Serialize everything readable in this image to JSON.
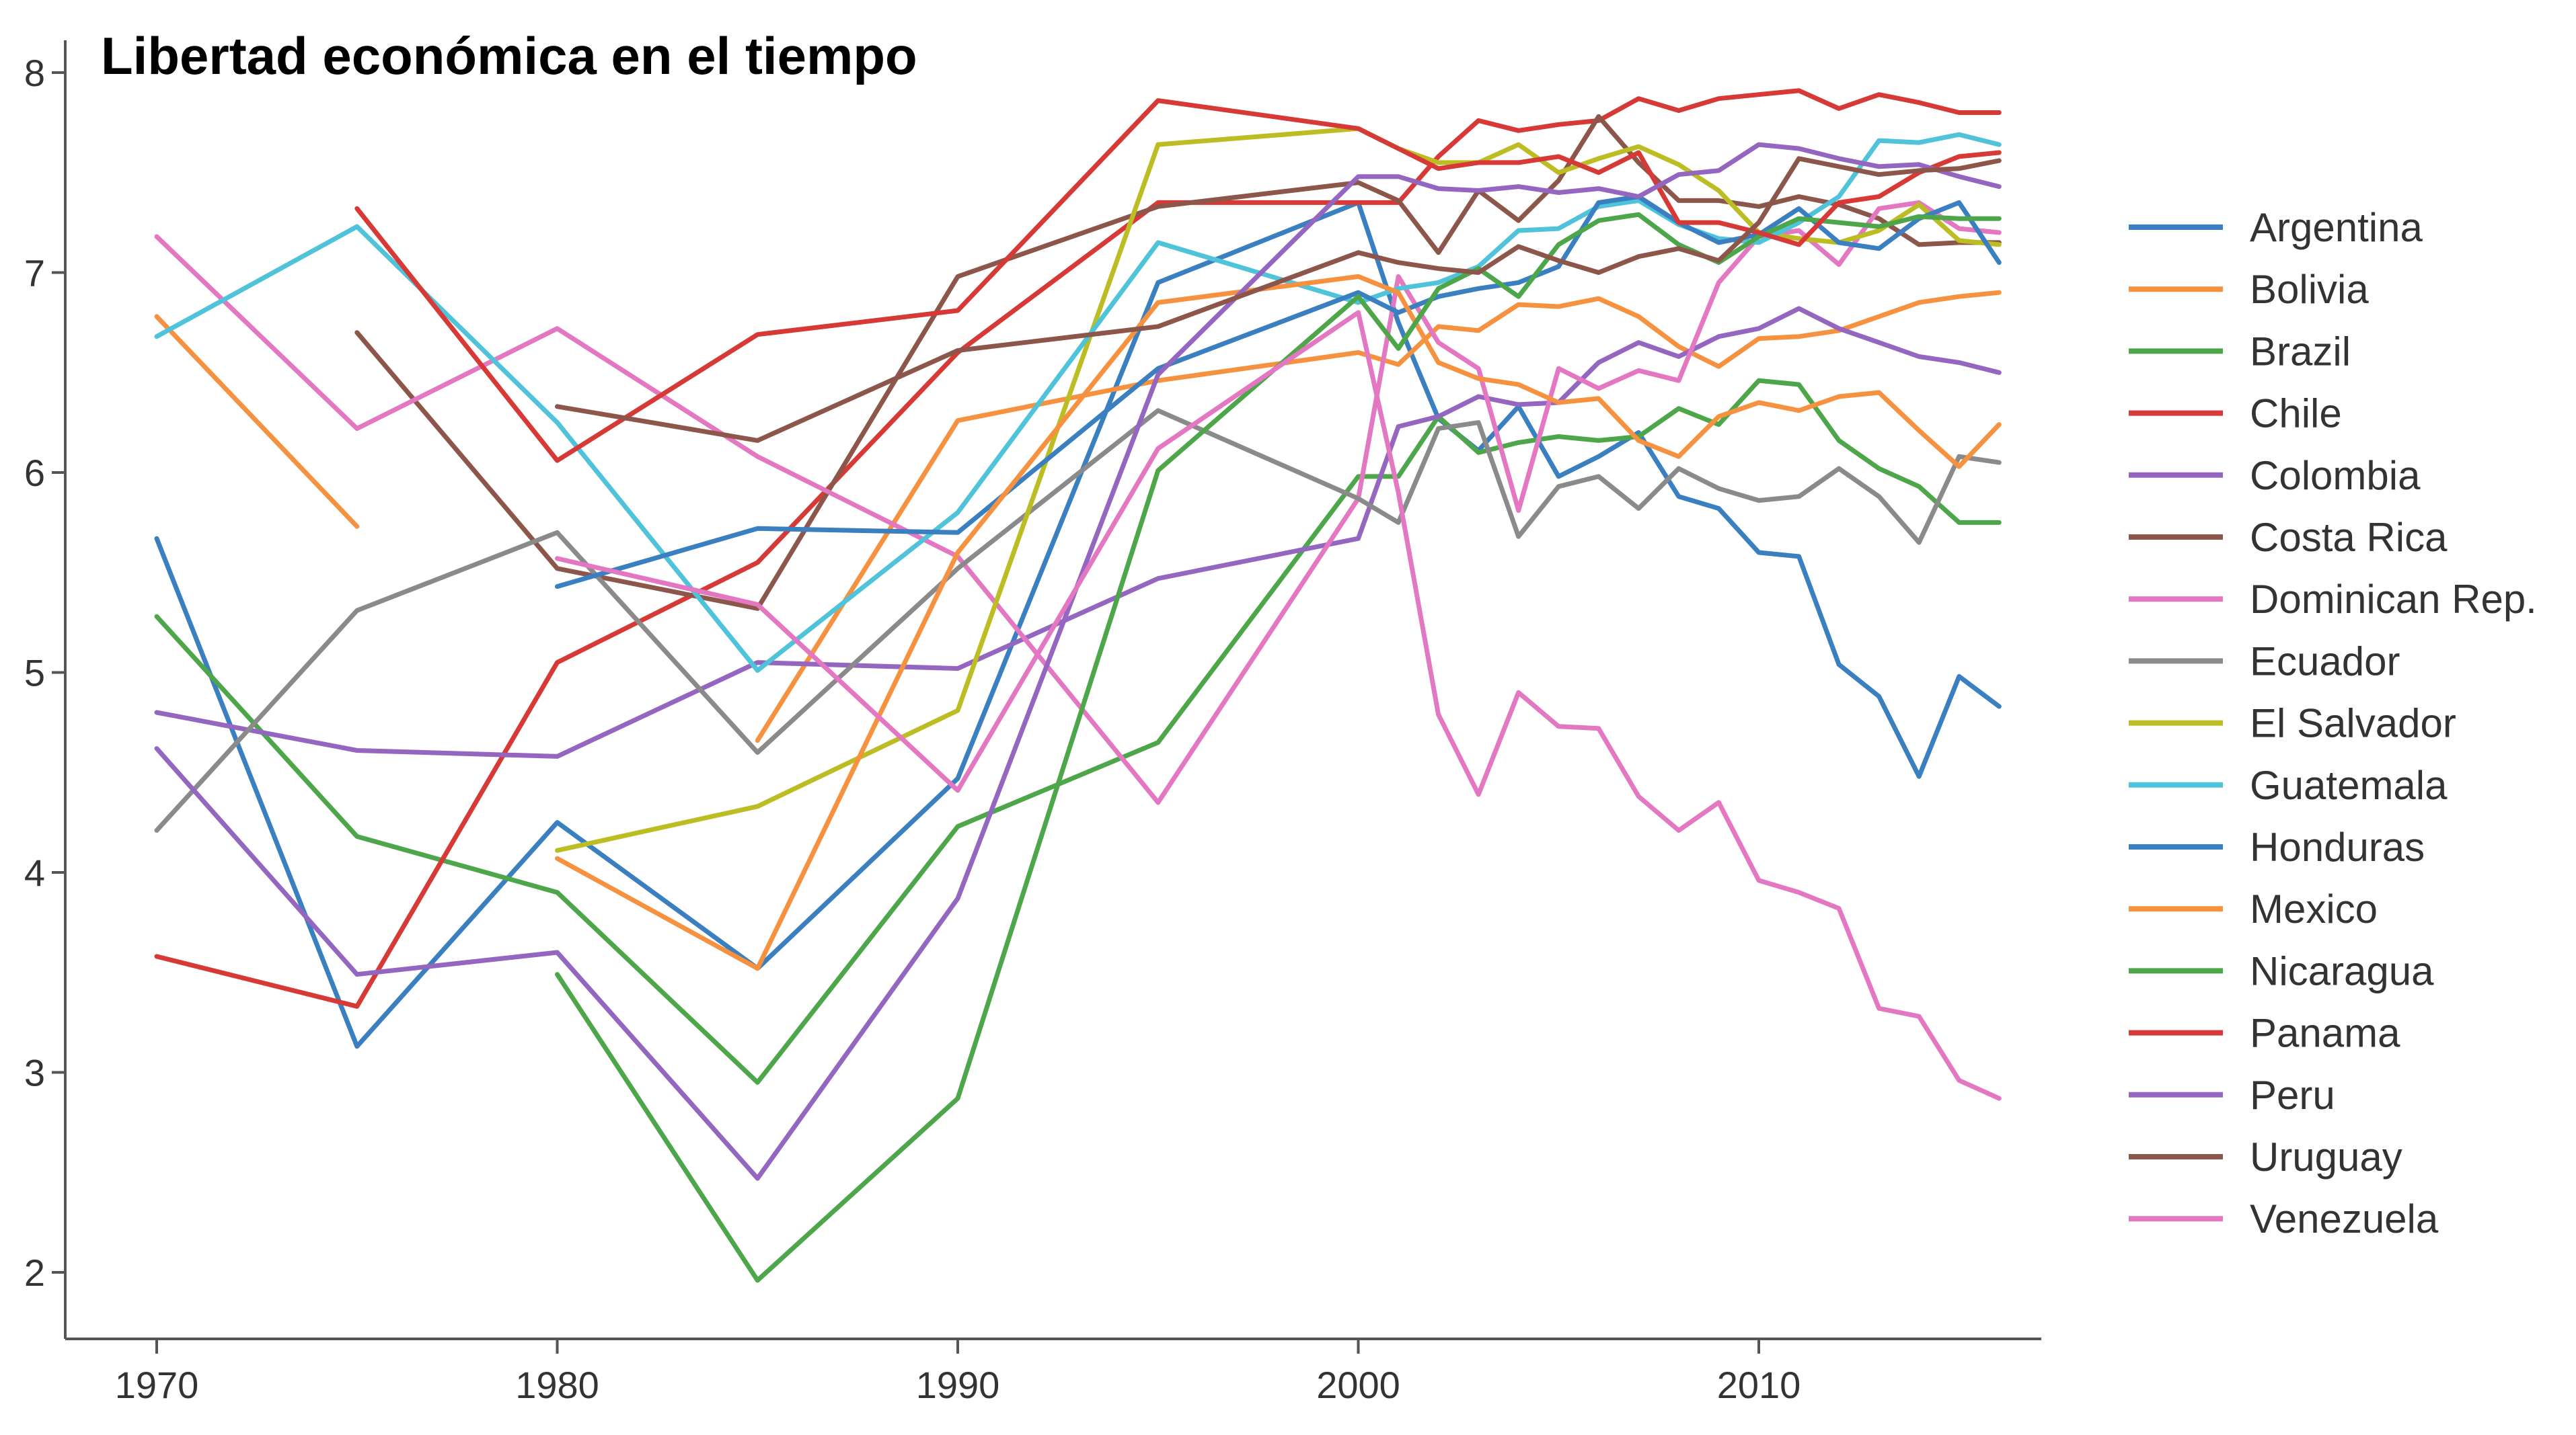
{
  "chart_data": {
    "type": "line",
    "title": "Libertad económica en el tiempo",
    "xlabel": "",
    "ylabel": "",
    "xlim": [
      1968,
      2017
    ],
    "ylim": [
      1.7,
      8.3
    ],
    "xticks": [
      1970,
      1980,
      1990,
      2000,
      2010
    ],
    "yticks": [
      2,
      3,
      4,
      5,
      6,
      7,
      8
    ],
    "grid": false,
    "legend_position": "right",
    "x": [
      1970,
      1975,
      1980,
      1985,
      1990,
      1995,
      2000,
      2001,
      2002,
      2003,
      2004,
      2005,
      2006,
      2007,
      2008,
      2009,
      2010,
      2011,
      2012,
      2013,
      2014,
      2015,
      2016
    ],
    "series": [
      {
        "name": "Argentina",
        "color": "#3a7fc0",
        "values": [
          5.67,
          3.13,
          4.25,
          3.52,
          4.47,
          6.95,
          7.35,
          6.75,
          6.27,
          6.11,
          6.33,
          5.98,
          6.08,
          6.2,
          5.88,
          5.82,
          5.6,
          5.58,
          5.04,
          4.88,
          4.48,
          4.98,
          4.83
        ]
      },
      {
        "name": "Bolivia",
        "color": "#f6913f",
        "values": [
          6.78,
          5.73,
          null,
          4.66,
          6.26,
          6.46,
          6.6,
          6.54,
          6.73,
          6.71,
          6.84,
          6.83,
          6.87,
          6.78,
          6.63,
          6.53,
          6.67,
          6.68,
          6.71,
          6.78,
          6.85,
          6.88,
          6.9
        ]
      },
      {
        "name": "Brazil",
        "color": "#4ea64a",
        "values": [
          5.28,
          4.18,
          3.9,
          2.95,
          4.23,
          4.65,
          5.98,
          5.98,
          6.28,
          6.1,
          6.15,
          6.18,
          6.16,
          6.18,
          6.32,
          6.24,
          6.46,
          6.44,
          6.16,
          6.02,
          5.93,
          5.75,
          5.75
        ]
      },
      {
        "name": "Chile",
        "color": "#d73a36",
        "values": [
          3.58,
          3.33,
          5.05,
          5.55,
          6.6,
          7.35,
          7.35,
          7.35,
          7.58,
          7.76,
          7.71,
          7.74,
          7.76,
          7.87,
          7.81,
          7.87,
          7.89,
          7.91,
          7.82,
          7.89,
          7.85,
          7.8,
          7.8
        ]
      },
      {
        "name": "Colombia",
        "color": "#9466bf",
        "values": [
          4.8,
          4.61,
          4.58,
          5.05,
          5.02,
          5.47,
          5.67,
          6.23,
          6.28,
          6.38,
          6.34,
          6.35,
          6.55,
          6.65,
          6.58,
          6.68,
          6.72,
          6.82,
          6.72,
          6.65,
          6.58,
          6.55,
          6.5
        ]
      },
      {
        "name": "Costa Rica",
        "color": "#8c564b",
        "values": [
          null,
          6.7,
          5.52,
          5.32,
          6.98,
          7.33,
          7.45,
          7.36,
          7.1,
          7.41,
          7.26,
          7.46,
          7.78,
          7.55,
          7.36,
          7.36,
          7.33,
          7.38,
          7.34,
          7.27,
          7.14,
          7.15,
          7.15
        ]
      },
      {
        "name": "Dominican Rep.",
        "color": "#e377c2",
        "values": [
          7.18,
          6.22,
          6.72,
          6.08,
          5.58,
          4.35,
          5.87,
          6.98,
          6.65,
          6.52,
          5.81,
          6.52,
          6.42,
          6.51,
          6.46,
          6.95,
          7.18,
          7.21,
          7.04,
          7.32,
          7.35,
          7.22,
          7.2
        ]
      },
      {
        "name": "Ecuador",
        "color": "#8a8a8a",
        "values": [
          4.21,
          5.31,
          5.7,
          4.6,
          5.52,
          6.31,
          5.87,
          5.75,
          6.22,
          6.25,
          5.68,
          5.93,
          5.98,
          5.82,
          6.02,
          5.92,
          5.86,
          5.88,
          6.02,
          5.88,
          5.65,
          6.08,
          6.05
        ]
      },
      {
        "name": "El Salvador",
        "color": "#bcbd22",
        "values": [
          null,
          null,
          4.11,
          4.33,
          4.81,
          7.64,
          7.72,
          7.62,
          7.55,
          7.55,
          7.64,
          7.5,
          7.57,
          7.63,
          7.54,
          7.41,
          7.2,
          7.17,
          7.15,
          7.21,
          7.34,
          7.16,
          7.14
        ]
      },
      {
        "name": "Guatemala",
        "color": "#4fc3d9",
        "values": [
          6.68,
          7.23,
          6.25,
          5.01,
          5.8,
          7.15,
          6.85,
          6.92,
          6.95,
          7.03,
          7.21,
          7.22,
          7.33,
          7.36,
          7.24,
          7.17,
          7.15,
          7.25,
          7.38,
          7.66,
          7.65,
          7.69,
          7.64
        ]
      },
      {
        "name": "Honduras",
        "color": "#3a7fc0",
        "values": [
          null,
          null,
          5.43,
          5.72,
          5.7,
          6.52,
          6.9,
          6.8,
          6.88,
          6.92,
          6.95,
          7.03,
          7.35,
          7.38,
          7.25,
          7.15,
          7.19,
          7.32,
          7.15,
          7.12,
          7.27,
          7.35,
          7.05
        ]
      },
      {
        "name": "Mexico",
        "color": "#f6913f",
        "values": [
          null,
          null,
          4.07,
          3.52,
          5.6,
          6.85,
          6.98,
          6.9,
          6.55,
          6.47,
          6.44,
          6.35,
          6.37,
          6.16,
          6.08,
          6.28,
          6.35,
          6.31,
          6.38,
          6.4,
          6.21,
          6.03,
          6.24
        ]
      },
      {
        "name": "Nicaragua",
        "color": "#4ea64a",
        "values": [
          null,
          null,
          3.49,
          1.96,
          2.87,
          6.01,
          6.88,
          6.62,
          6.92,
          7.02,
          6.88,
          7.14,
          7.26,
          7.29,
          7.14,
          7.05,
          7.18,
          7.27,
          7.25,
          7.23,
          7.28,
          7.27,
          7.27
        ]
      },
      {
        "name": "Panama",
        "color": "#d73a36",
        "values": [
          null,
          7.32,
          6.06,
          6.69,
          6.81,
          7.86,
          7.72,
          7.62,
          7.52,
          7.55,
          7.55,
          7.58,
          7.5,
          7.6,
          7.25,
          7.25,
          7.2,
          7.14,
          7.35,
          7.38,
          7.5,
          7.58,
          7.6
        ]
      },
      {
        "name": "Peru",
        "color": "#9466bf",
        "values": [
          4.62,
          3.49,
          3.6,
          2.47,
          3.87,
          6.49,
          7.48,
          7.48,
          7.42,
          7.41,
          7.43,
          7.4,
          7.42,
          7.38,
          7.49,
          7.51,
          7.64,
          7.62,
          7.57,
          7.53,
          7.54,
          7.48,
          7.43
        ]
      },
      {
        "name": "Uruguay",
        "color": "#8c564b",
        "values": [
          null,
          null,
          6.33,
          6.16,
          6.61,
          6.73,
          7.1,
          7.05,
          7.02,
          7.0,
          7.13,
          7.06,
          7.0,
          7.08,
          7.12,
          7.06,
          7.25,
          7.57,
          7.53,
          7.49,
          7.51,
          7.52,
          7.56
        ]
      },
      {
        "name": "Venezuela",
        "color": "#e377c2",
        "values": [
          null,
          null,
          5.57,
          5.34,
          4.41,
          6.12,
          6.8,
          5.9,
          4.79,
          4.39,
          4.9,
          4.73,
          4.72,
          4.38,
          4.21,
          4.35,
          3.96,
          3.9,
          3.82,
          3.32,
          3.28,
          2.96,
          2.87
        ]
      }
    ]
  }
}
